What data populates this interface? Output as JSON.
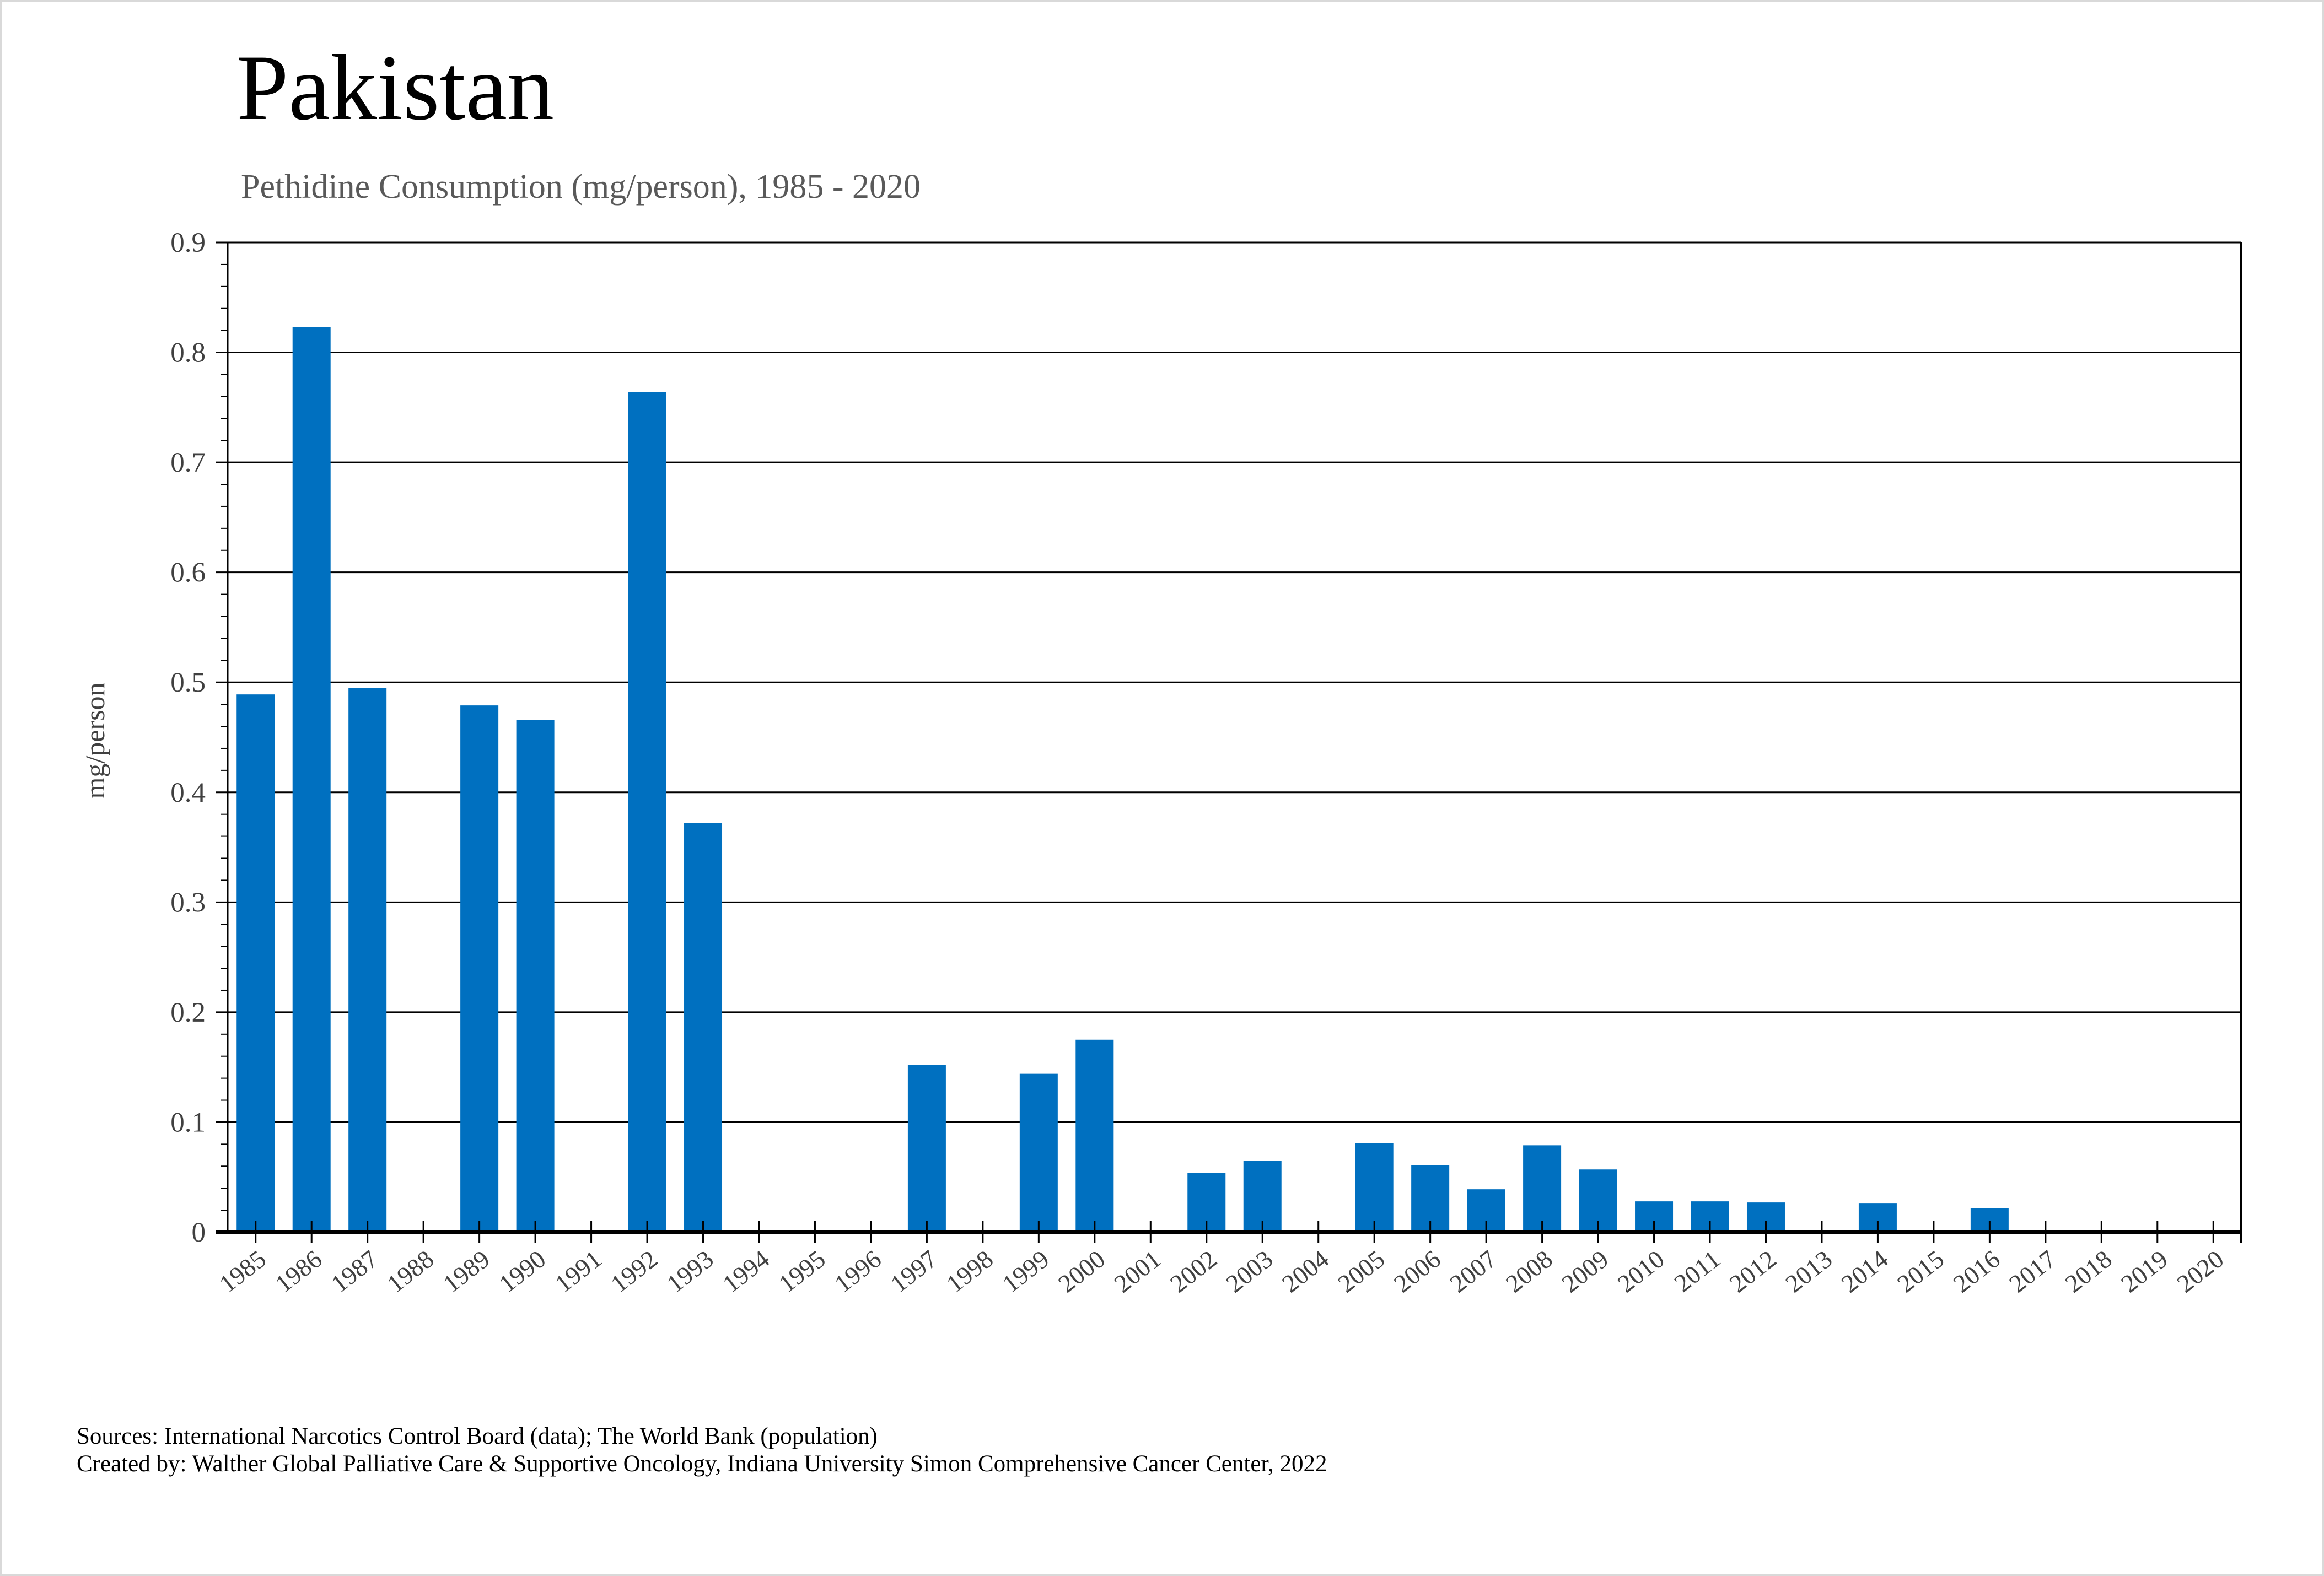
{
  "title": "Pakistan",
  "subtitle": "Pethidine Consumption (mg/person), 1985 - 2020",
  "sources": "Sources: International Narcotics Control Board (data); The World Bank (population)",
  "created_by": "Created by: Walther Global Palliative Care & Supportive Oncology, Indiana University Simon Comprehensive Cancer Center, 2022",
  "chart_data": {
    "type": "bar",
    "title": "Pakistan",
    "subtitle": "Pethidine Consumption (mg/person), 1985 - 2020",
    "xlabel": "",
    "ylabel": "mg/person",
    "ylim": [
      0,
      0.9
    ],
    "yticks": [
      "0",
      "0.1",
      "0.2",
      "0.3",
      "0.4",
      "0.5",
      "0.6",
      "0.7",
      "0.8",
      "0.9"
    ],
    "grid": true,
    "bar_color": "#0070C0",
    "categories": [
      "1985",
      "1986",
      "1987",
      "1988",
      "1989",
      "1990",
      "1991",
      "1992",
      "1993",
      "1994",
      "1995",
      "1996",
      "1997",
      "1998",
      "1999",
      "2000",
      "2001",
      "2002",
      "2003",
      "2004",
      "2005",
      "2006",
      "2007",
      "2008",
      "2009",
      "2010",
      "2011",
      "2012",
      "2013",
      "2014",
      "2015",
      "2016",
      "2017",
      "2018",
      "2019",
      "2020"
    ],
    "values": [
      0.489,
      0.823,
      0.495,
      0,
      0.479,
      0.466,
      0,
      0.764,
      0.372,
      0,
      0,
      0,
      0.152,
      0,
      0.144,
      0.175,
      0,
      0.054,
      0.065,
      0,
      0.081,
      0.061,
      0.039,
      0.079,
      0.057,
      0.028,
      0.028,
      0.027,
      0,
      0.026,
      0,
      0.022,
      0,
      0,
      0.001,
      0
    ]
  }
}
